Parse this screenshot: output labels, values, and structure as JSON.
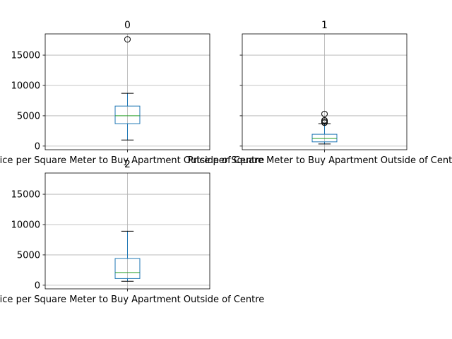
{
  "chart_data": [
    {
      "type": "box",
      "title": "0",
      "xtick_label": "Price per Square Meter to Buy Apartment Outside of Centre",
      "ylim": [
        -600,
        18500
      ],
      "yticks": [
        0,
        5000,
        10000,
        15000
      ],
      "show_ytick_labels": true,
      "grid": true,
      "box": {
        "whislo": 1000,
        "q1": 3700,
        "med": 5000,
        "q3": 6600,
        "whishi": 8700,
        "fliers": [
          17600
        ]
      }
    },
    {
      "type": "box",
      "title": "1",
      "xtick_label": "Price per Square Meter to Buy Apartment Outside of Centre",
      "ylim": [
        -600,
        18500
      ],
      "yticks": [
        0,
        5000,
        10000,
        15000
      ],
      "show_ytick_labels": false,
      "grid": true,
      "box": {
        "whislo": 350,
        "q1": 700,
        "med": 1250,
        "q3": 1950,
        "whishi": 3700,
        "fliers": [
          3850,
          4050,
          4250,
          5300
        ]
      }
    },
    {
      "type": "box",
      "title": "2",
      "xtick_label": "Price per Square Meter to Buy Apartment Outside of Centre",
      "ylim": [
        -600,
        18500
      ],
      "yticks": [
        0,
        5000,
        10000,
        15000
      ],
      "show_ytick_labels": true,
      "grid": true,
      "box": {
        "whislo": 650,
        "q1": 1100,
        "med": 2100,
        "q3": 4400,
        "whishi": 8900,
        "fliers": []
      }
    }
  ]
}
